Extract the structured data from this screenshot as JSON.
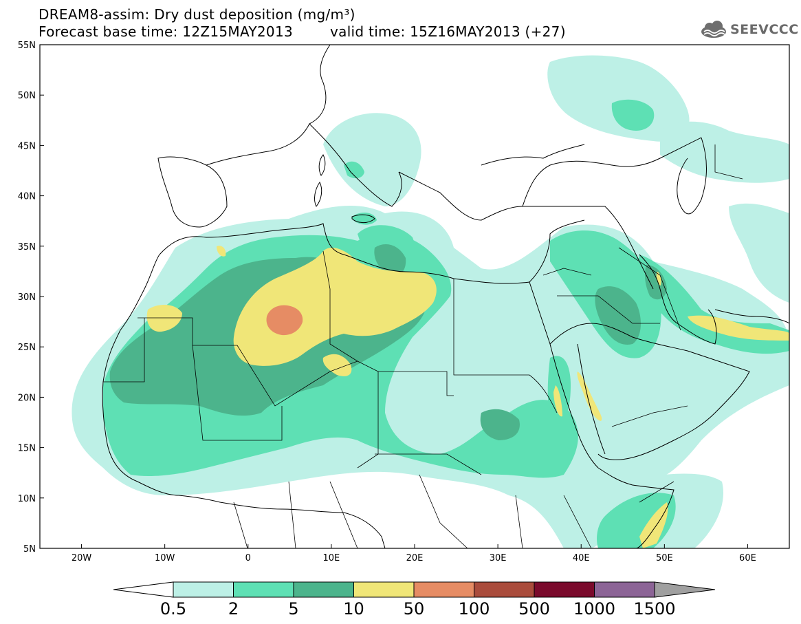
{
  "header": {
    "title_line1": "DREAM8-assim: Dry dust deposition (mg/m³)",
    "title_line2": "Forecast base time: 12Z15MAY2013",
    "valid_time": "valid time: 15Z16MAY2013 (+27)",
    "logo_text": "SEEVCCC"
  },
  "map": {
    "lon_range": [
      -25,
      65
    ],
    "lat_range": [
      5,
      55
    ],
    "y_ticks": [
      "55N",
      "50N",
      "45N",
      "40N",
      "35N",
      "30N",
      "25N",
      "20N",
      "15N",
      "10N",
      "5N"
    ],
    "x_ticks": [
      "20W",
      "10W",
      "0",
      "10E",
      "20E",
      "30E",
      "40E",
      "50E",
      "60E"
    ]
  },
  "colorbar": {
    "labels": [
      "0.5",
      "2",
      "5",
      "10",
      "50",
      "100",
      "500",
      "1000",
      "1500"
    ],
    "colors": [
      "#bdf0e6",
      "#5ee0b4",
      "#4cb48c",
      "#f0e678",
      "#e68c64",
      "#aa4c3c",
      "#7a0a2c",
      "#8c6496",
      "#a0a0a0"
    ]
  }
}
